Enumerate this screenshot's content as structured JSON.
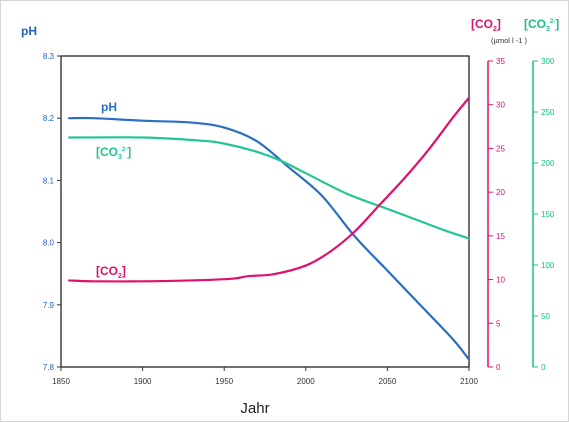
{
  "chart_data": {
    "type": "line",
    "xlabel": "Jahr",
    "x_ticks": [
      "1850",
      "1900",
      "1950",
      "2000",
      "2050",
      "2100"
    ],
    "xlim": [
      1850,
      2100
    ],
    "axes": {
      "ph": {
        "label": "pH",
        "ylim": [
          7.8,
          8.3
        ],
        "ticks": [
          "7.8",
          "7.9",
          "8.0",
          "8.1",
          "8.2",
          "8.3"
        ],
        "color": "#2460b8"
      },
      "co2": {
        "label_main": "[CO",
        "label_sub": "2",
        "label_close": "]",
        "unit": "(µmol l -1 )",
        "ylim": [
          0,
          35
        ],
        "ticks": [
          "0",
          "5",
          "10",
          "15",
          "20",
          "25",
          "30",
          "35"
        ],
        "color": "#e0106b"
      },
      "co3": {
        "label_main": "[CO",
        "label_sub": "3",
        "label_sup": "2-",
        "label_close": "]",
        "ylim": [
          0,
          300
        ],
        "ticks": [
          "0",
          "50",
          "100",
          "150",
          "200",
          "250",
          "300"
        ],
        "color": "#19c08a"
      }
    },
    "series": [
      {
        "key": "ph",
        "label_main": "pH",
        "color": "#2a6fc2",
        "axis": "ph",
        "points": [
          [
            1855,
            8.2
          ],
          [
            1870,
            8.2
          ],
          [
            1900,
            8.196
          ],
          [
            1930,
            8.193
          ],
          [
            1950,
            8.185
          ],
          [
            1970,
            8.163
          ],
          [
            1990,
            8.12
          ],
          [
            2010,
            8.075
          ],
          [
            2030,
            8.01
          ],
          [
            2050,
            7.955
          ],
          [
            2070,
            7.9
          ],
          [
            2090,
            7.845
          ],
          [
            2100,
            7.812
          ]
        ]
      },
      {
        "key": "co3",
        "label_main": "[CO",
        "label_sub": "3",
        "label_sup": "2-",
        "label_close": "]",
        "color": "#22c594",
        "axis": "co3",
        "points": [
          [
            1855,
            225
          ],
          [
            1900,
            225
          ],
          [
            1935,
            222
          ],
          [
            1950,
            219
          ],
          [
            1970,
            211
          ],
          [
            1985,
            202
          ],
          [
            2000,
            190
          ],
          [
            2025,
            170
          ],
          [
            2050,
            155
          ],
          [
            2070,
            143
          ],
          [
            2085,
            134
          ],
          [
            2100,
            126
          ]
        ]
      },
      {
        "key": "co2",
        "label_main": "[CO",
        "label_sub": "2",
        "label_close": "]",
        "color": "#e0106b",
        "axis": "co2",
        "points": [
          [
            1855,
            9.9
          ],
          [
            1870,
            9.8
          ],
          [
            1900,
            9.8
          ],
          [
            1930,
            9.9
          ],
          [
            1955,
            10.1
          ],
          [
            1965,
            10.4
          ],
          [
            1980,
            10.6
          ],
          [
            2000,
            11.6
          ],
          [
            2015,
            13.2
          ],
          [
            2030,
            15.5
          ],
          [
            2045,
            18.5
          ],
          [
            2060,
            21.5
          ],
          [
            2075,
            24.8
          ],
          [
            2090,
            28.5
          ],
          [
            2100,
            30.8
          ]
        ]
      }
    ],
    "grid": false,
    "legend": "inline labels"
  }
}
